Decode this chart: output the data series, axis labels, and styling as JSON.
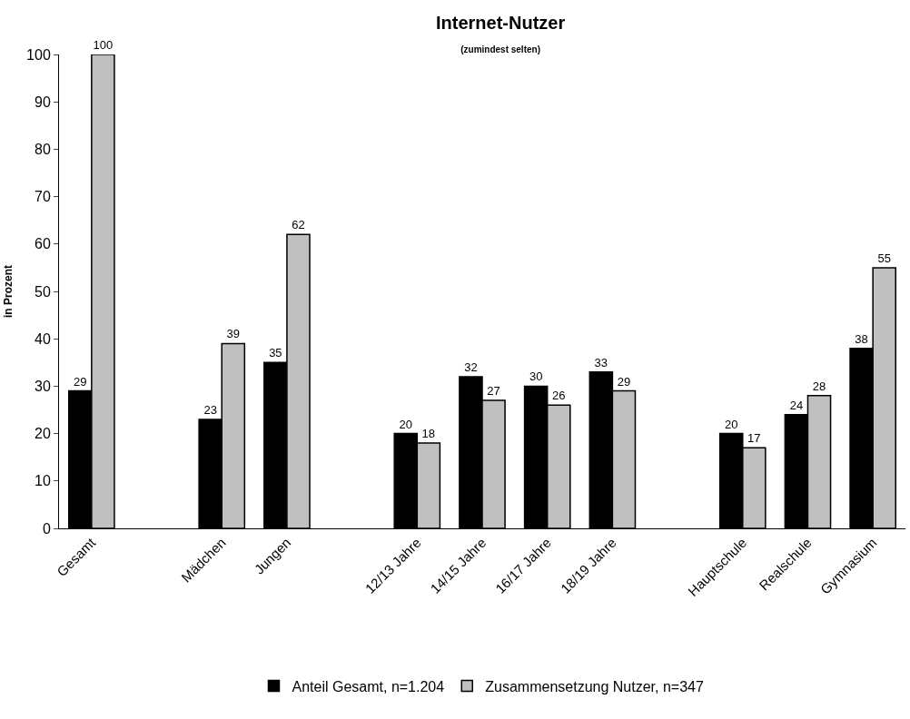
{
  "chart_data": {
    "type": "bar",
    "title": "Internet-Nutzer",
    "subtitle": "(zumindest selten)",
    "ylabel": "in Prozent",
    "categories": [
      "Gesamt",
      null,
      "Mädchen",
      "Jungen",
      null,
      "12/13 Jahre",
      "14/15 Jahre",
      "16/17 Jahre",
      "18/19 Jahre",
      null,
      "Hauptschule",
      "Realschule",
      "Gymnasium"
    ],
    "series": [
      {
        "name": "Anteil Gesamt, n=1.204",
        "color": "#000000",
        "values": [
          29,
          null,
          23,
          35,
          null,
          20,
          32,
          30,
          33,
          null,
          20,
          24,
          38
        ]
      },
      {
        "name": "Zusammensetzung Nutzer, n=347",
        "color": "#c0c0c0",
        "values": [
          100,
          null,
          39,
          62,
          null,
          18,
          27,
          26,
          29,
          null,
          17,
          28,
          55
        ]
      }
    ],
    "ylim": [
      0,
      100
    ],
    "yticks": [
      0,
      10,
      20,
      30,
      40,
      50,
      60,
      70,
      80,
      90,
      100
    ],
    "grid": false,
    "legend": "bottom",
    "data_labels": true
  }
}
